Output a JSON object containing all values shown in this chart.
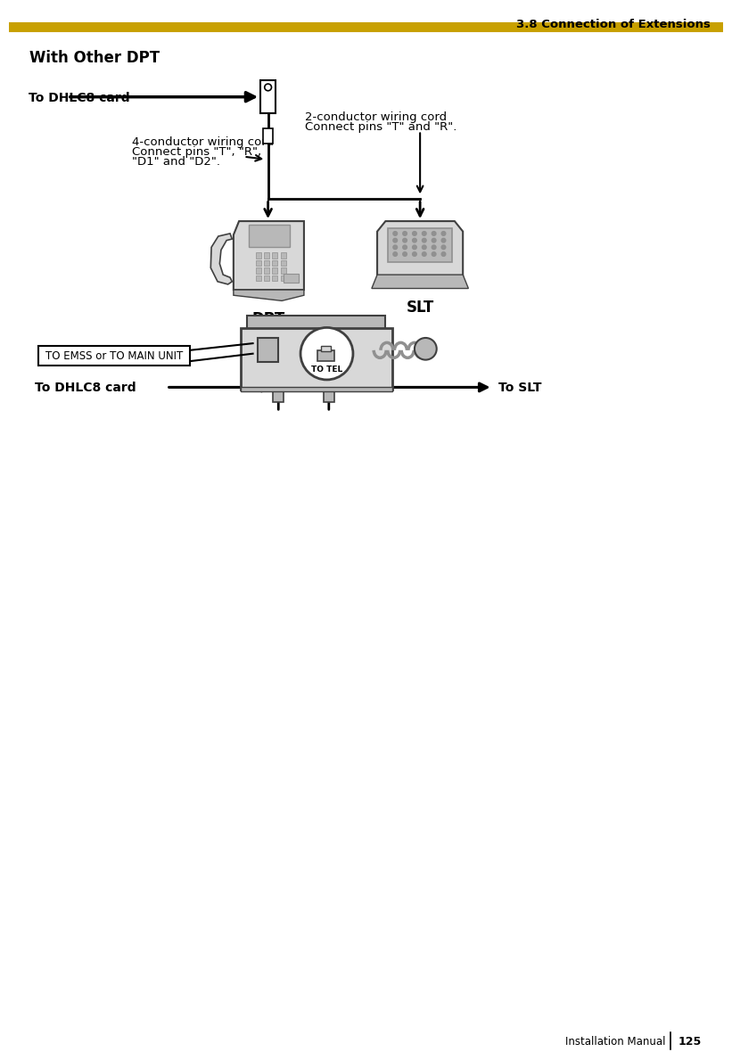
{
  "page_title": "3.8 Connection of Extensions",
  "section_title": "With Other DPT",
  "footer_left": "Installation Manual",
  "footer_page": "125",
  "header_line_color": "#C8A000",
  "bg_color": "#FFFFFF",
  "text_color": "#000000",
  "label_to_dhlc8_card_top": "To DHLC8 card",
  "label_dpt": "DPT",
  "label_slt": "SLT",
  "label_4cond_line1": "4-conductor wiring cord",
  "label_4cond_line2": "Connect pins \"T\", \"R\",",
  "label_4cond_line3": "\"D1\" and \"D2\".",
  "label_2cond_line1": "2-conductor wiring cord",
  "label_2cond_line2": "Connect pins \"T\" and \"R\".",
  "label_to_emss": "TO EMSS or TO MAIN UNIT",
  "label_to_dhlc8_bottom": "To DHLC8 card",
  "label_to_slt": "To SLT",
  "label_to_tel": "TO TEL",
  "device_gray_light": "#D8D8D8",
  "device_gray_mid": "#B8B8B8",
  "device_gray_dark": "#909090",
  "device_outline": "#404040"
}
